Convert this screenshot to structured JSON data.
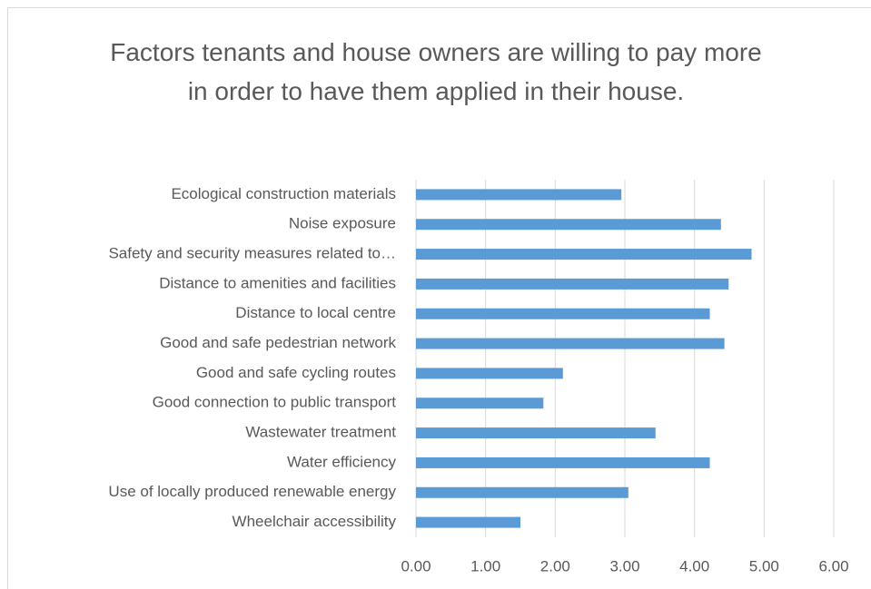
{
  "chart_data": {
    "type": "bar",
    "orientation": "horizontal",
    "title": "Factors tenants and house owners are willing to pay more in order to have them applied in their house.",
    "categories": [
      "Ecological construction materials",
      "Noise exposure",
      "Safety and security measures related to…",
      "Distance to amenities and facilities",
      "Distance to local centre",
      "Good and safe pedestrian network",
      "Good and safe cycling routes",
      "Good connection to public transport",
      "Wastewater treatment",
      "Water efficiency",
      "Use of locally produced renewable energy",
      "Wheelchair accessibility"
    ],
    "values": [
      2.95,
      4.38,
      4.82,
      4.49,
      4.22,
      4.43,
      2.11,
      1.83,
      3.44,
      4.22,
      3.05,
      1.5
    ],
    "color": "#5b9bd5",
    "xlim": [
      0,
      6
    ],
    "xticks": [
      {
        "value": 0,
        "label": "0.00"
      },
      {
        "value": 1,
        "label": "1.00"
      },
      {
        "value": 2,
        "label": "2.00"
      },
      {
        "value": 3,
        "label": "3.00"
      },
      {
        "value": 4,
        "label": "4.00"
      },
      {
        "value": 5,
        "label": "5.00"
      },
      {
        "value": 6,
        "label": "6.00"
      }
    ],
    "grid": true
  }
}
